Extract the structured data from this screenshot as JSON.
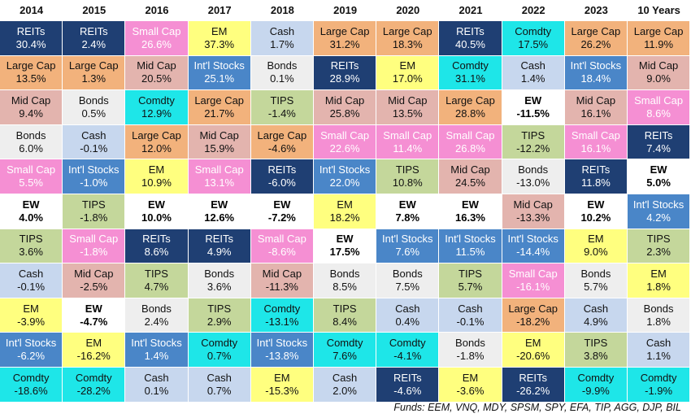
{
  "chart_data": {
    "type": "table",
    "columns": [
      "2014",
      "2015",
      "2016",
      "2017",
      "2018",
      "2019",
      "2020",
      "2021",
      "2022",
      "2023",
      "10 Years"
    ],
    "table": [
      [
        [
          "REITs",
          "30.4%"
        ],
        [
          "REITs",
          "2.4%"
        ],
        [
          "Small Cap",
          "26.6%"
        ],
        [
          "EM",
          "37.3%"
        ],
        [
          "Cash",
          "1.7%"
        ],
        [
          "Large Cap",
          "31.2%"
        ],
        [
          "Large Cap",
          "18.3%"
        ],
        [
          "REITs",
          "40.5%"
        ],
        [
          "Comdty",
          "17.5%"
        ],
        [
          "Large Cap",
          "26.2%"
        ],
        [
          "Large Cap",
          "11.9%"
        ]
      ],
      [
        [
          "Large Cap",
          "13.5%"
        ],
        [
          "Large Cap",
          "1.3%"
        ],
        [
          "Mid Cap",
          "20.5%"
        ],
        [
          "Int'l Stocks",
          "25.1%"
        ],
        [
          "Bonds",
          "0.1%"
        ],
        [
          "REITs",
          "28.9%"
        ],
        [
          "EM",
          "17.0%"
        ],
        [
          "Comdty",
          "31.1%"
        ],
        [
          "Cash",
          "1.4%"
        ],
        [
          "Int'l Stocks",
          "18.4%"
        ],
        [
          "Mid Cap",
          "9.0%"
        ]
      ],
      [
        [
          "Mid Cap",
          "9.4%"
        ],
        [
          "Bonds",
          "0.5%"
        ],
        [
          "Comdty",
          "12.9%"
        ],
        [
          "Large Cap",
          "21.7%"
        ],
        [
          "TIPS",
          "-1.4%"
        ],
        [
          "Mid Cap",
          "25.8%"
        ],
        [
          "Mid Cap",
          "13.5%"
        ],
        [
          "Large Cap",
          "28.8%"
        ],
        [
          "EW",
          "-11.5%"
        ],
        [
          "Mid Cap",
          "16.1%"
        ],
        [
          "Small Cap",
          "8.6%"
        ]
      ],
      [
        [
          "Bonds",
          "6.0%"
        ],
        [
          "Cash",
          "-0.1%"
        ],
        [
          "Large Cap",
          "12.0%"
        ],
        [
          "Mid Cap",
          "15.9%"
        ],
        [
          "Large Cap",
          "-4.6%"
        ],
        [
          "Small Cap",
          "22.6%"
        ],
        [
          "Small Cap",
          "11.4%"
        ],
        [
          "Small Cap",
          "26.8%"
        ],
        [
          "TIPS",
          "-12.2%"
        ],
        [
          "Small Cap",
          "16.1%"
        ],
        [
          "REITs",
          "7.4%"
        ]
      ],
      [
        [
          "Small Cap",
          "5.5%"
        ],
        [
          "Int'l Stocks",
          "-1.0%"
        ],
        [
          "EM",
          "10.9%"
        ],
        [
          "Small Cap",
          "13.1%"
        ],
        [
          "REITs",
          "-6.0%"
        ],
        [
          "Int'l Stocks",
          "22.0%"
        ],
        [
          "TIPS",
          "10.8%"
        ],
        [
          "Mid Cap",
          "24.5%"
        ],
        [
          "Bonds",
          "-13.0%"
        ],
        [
          "REITs",
          "11.8%"
        ],
        [
          "EW",
          "5.0%"
        ]
      ],
      [
        [
          "EW",
          "4.0%"
        ],
        [
          "TIPS",
          "-1.8%"
        ],
        [
          "EW",
          "10.0%"
        ],
        [
          "EW",
          "12.6%"
        ],
        [
          "EW",
          "-7.2%"
        ],
        [
          "EM",
          "18.2%"
        ],
        [
          "EW",
          "7.8%"
        ],
        [
          "EW",
          "16.3%"
        ],
        [
          "Mid Cap",
          "-13.3%"
        ],
        [
          "EW",
          "10.2%"
        ],
        [
          "Int'l Stocks",
          "4.2%"
        ]
      ],
      [
        [
          "TIPS",
          "3.6%"
        ],
        [
          "Small Cap",
          "-1.8%"
        ],
        [
          "REITs",
          "8.6%"
        ],
        [
          "REITs",
          "4.9%"
        ],
        [
          "Small Cap",
          "-8.6%"
        ],
        [
          "EW",
          "17.5%"
        ],
        [
          "Int'l Stocks",
          "7.6%"
        ],
        [
          "Int'l Stocks",
          "11.5%"
        ],
        [
          "Int'l Stocks",
          "-14.4%"
        ],
        [
          "EM",
          "9.0%"
        ],
        [
          "TIPS",
          "2.3%"
        ]
      ],
      [
        [
          "Cash",
          "-0.1%"
        ],
        [
          "Mid Cap",
          "-2.5%"
        ],
        [
          "TIPS",
          "4.7%"
        ],
        [
          "Bonds",
          "3.6%"
        ],
        [
          "Mid Cap",
          "-11.3%"
        ],
        [
          "Bonds",
          "8.5%"
        ],
        [
          "Bonds",
          "7.5%"
        ],
        [
          "TIPS",
          "5.7%"
        ],
        [
          "Small Cap",
          "-16.1%"
        ],
        [
          "Bonds",
          "5.7%"
        ],
        [
          "EM",
          "1.8%"
        ]
      ],
      [
        [
          "EM",
          "-3.9%"
        ],
        [
          "EW",
          "-4.7%"
        ],
        [
          "Bonds",
          "2.4%"
        ],
        [
          "TIPS",
          "2.9%"
        ],
        [
          "Comdty",
          "-13.1%"
        ],
        [
          "TIPS",
          "8.4%"
        ],
        [
          "Cash",
          "0.4%"
        ],
        [
          "Cash",
          "-0.1%"
        ],
        [
          "Large Cap",
          "-18.2%"
        ],
        [
          "Cash",
          "4.9%"
        ],
        [
          "Bonds",
          "1.8%"
        ]
      ],
      [
        [
          "Int'l Stocks",
          "-6.2%"
        ],
        [
          "EM",
          "-16.2%"
        ],
        [
          "Int'l Stocks",
          "1.4%"
        ],
        [
          "Comdty",
          "0.7%"
        ],
        [
          "Int'l Stocks",
          "-13.8%"
        ],
        [
          "Comdty",
          "7.6%"
        ],
        [
          "Comdty",
          "-4.1%"
        ],
        [
          "Bonds",
          "-1.8%"
        ],
        [
          "EM",
          "-20.6%"
        ],
        [
          "TIPS",
          "3.8%"
        ],
        [
          "Cash",
          "1.1%"
        ]
      ],
      [
        [
          "Comdty",
          "-18.6%"
        ],
        [
          "Comdty",
          "-28.2%"
        ],
        [
          "Cash",
          "0.1%"
        ],
        [
          "Cash",
          "0.7%"
        ],
        [
          "EM",
          "-15.3%"
        ],
        [
          "Cash",
          "2.0%"
        ],
        [
          "REITs",
          "-4.6%"
        ],
        [
          "EM",
          "-3.6%"
        ],
        [
          "REITs",
          "-26.2%"
        ],
        [
          "Comdty",
          "-9.9%"
        ],
        [
          "Comdty",
          "-1.9%"
        ]
      ]
    ],
    "footnote": "Funds: EEM, VNQ, MDY, SPSM, SPY, EFA, TIP, AGG, DJP, BIL"
  },
  "asset_colors": {
    "REITs": {
      "bg": "#1f3f73",
      "fg": "#ffffff"
    },
    "Large Cap": {
      "bg": "#f2b27c",
      "fg": "#111111"
    },
    "Mid Cap": {
      "bg": "#e3b4ae",
      "fg": "#111111"
    },
    "Small Cap": {
      "bg": "#f58fd3",
      "fg": "#ffffff"
    },
    "Int'l Stocks": {
      "bg": "#4a86c8",
      "fg": "#ffffff"
    },
    "EM": {
      "bg": "#ffff7f",
      "fg": "#111111"
    },
    "Cash": {
      "bg": "#c7d7ee",
      "fg": "#111111"
    },
    "Bonds": {
      "bg": "#eeeeee",
      "fg": "#111111"
    },
    "TIPS": {
      "bg": "#c4d79b",
      "fg": "#111111"
    },
    "Comdty": {
      "bg": "#1ee6e8",
      "fg": "#111111"
    },
    "EW": {
      "bg": "#ffffff",
      "fg": "#000000",
      "bold": true
    }
  }
}
